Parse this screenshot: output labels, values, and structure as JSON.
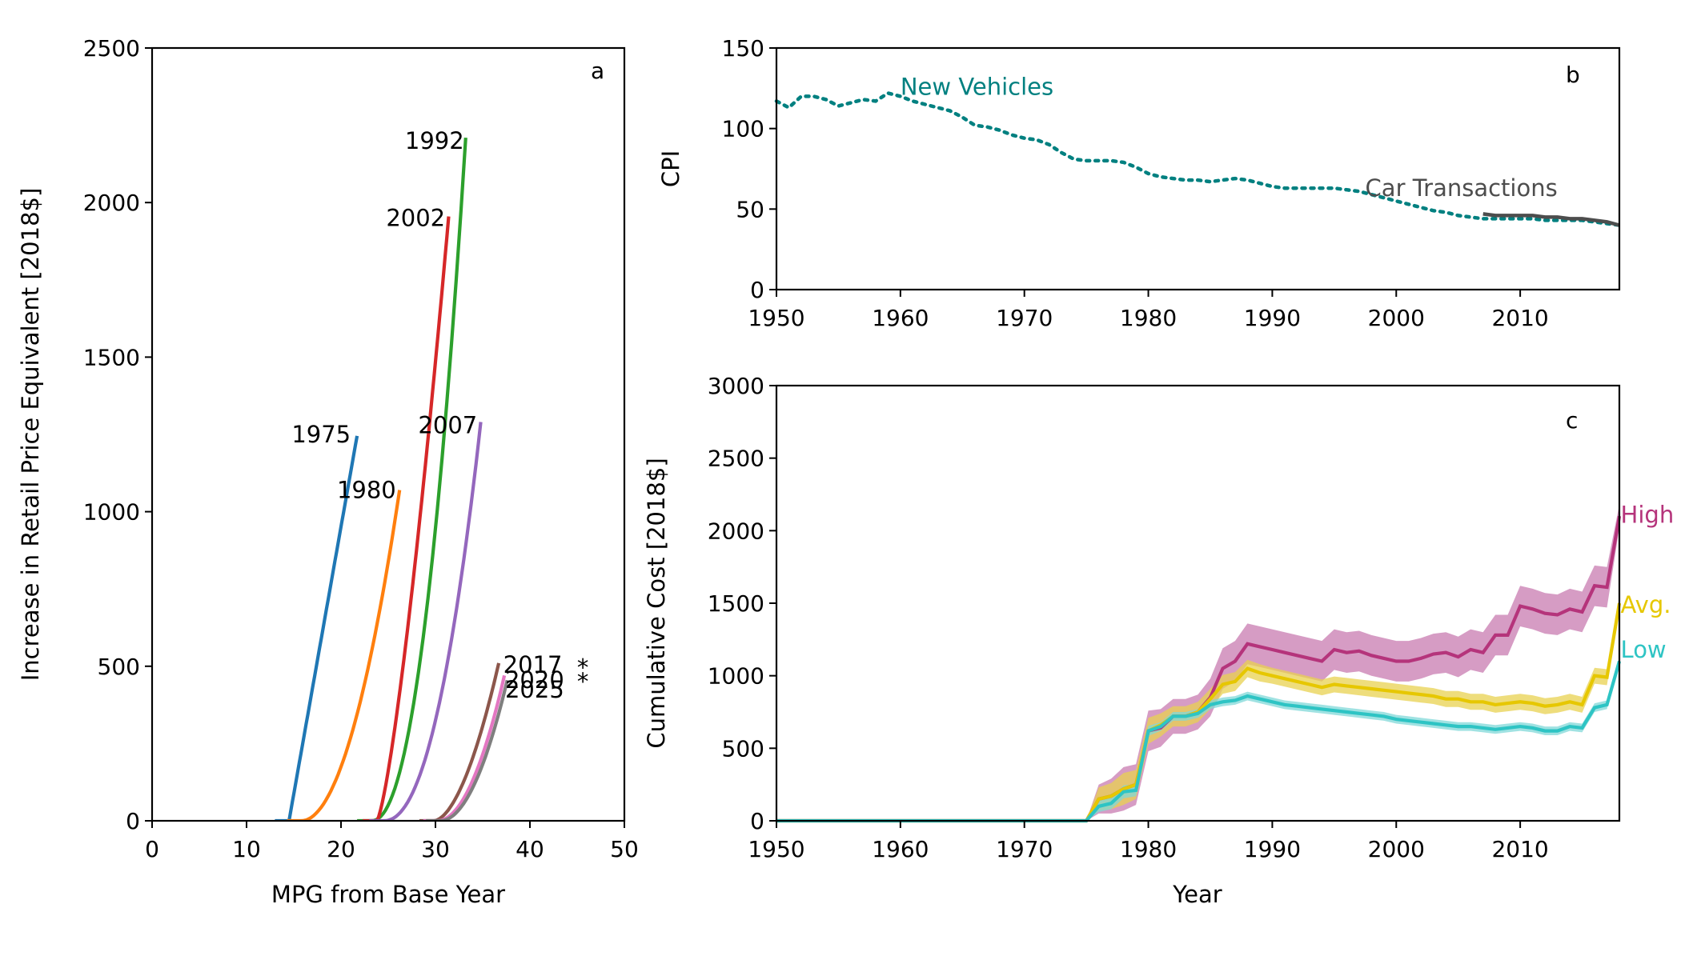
{
  "chart_data": [
    {
      "id": "a",
      "type": "line",
      "panel_label": "a",
      "xlabel": "MPG from Base Year",
      "ylabel": "Increase in Retail Price Equivalent [2018$]",
      "xlim": [
        0,
        50
      ],
      "ylim": [
        0,
        2500
      ],
      "xticks": [
        "0",
        "10",
        "20",
        "30",
        "40",
        "50"
      ],
      "yticks": [
        "0",
        "500",
        "1000",
        "1500",
        "2000",
        "2500"
      ],
      "grid": false,
      "series": [
        {
          "name": "1975",
          "color": "#1f77b4",
          "shape": "linear",
          "x_start": 14.5,
          "x_end": 21.7,
          "y_end": 1245,
          "power": 1.0
        },
        {
          "name": "1980",
          "color": "#ff7f0e",
          "shape": "curve",
          "x_start": 15.8,
          "x_end": 26.2,
          "y_end": 1070,
          "power": 2.0
        },
        {
          "name": "1992",
          "color": "#2ca02c",
          "shape": "curve",
          "x_start": 23.2,
          "x_end": 33.2,
          "y_end": 2210,
          "power": 2.2
        },
        {
          "name": "2002",
          "color": "#d62728",
          "shape": "curve",
          "x_start": 23.8,
          "x_end": 31.4,
          "y_end": 1955,
          "power": 1.35
        },
        {
          "name": "2007",
          "color": "#9467bd",
          "shape": "curve",
          "x_start": 24.5,
          "x_end": 34.8,
          "y_end": 1290,
          "power": 2.2
        },
        {
          "name": "2017",
          "color": "#8c564b",
          "shape": "curve",
          "x_start": 29.8,
          "x_end": 36.7,
          "y_end": 510,
          "power": 1.8
        },
        {
          "name": "2020",
          "color": "#e377c2",
          "shape": "curve",
          "x_start": 30.2,
          "x_end": 37.3,
          "y_end": 470,
          "power": 2.0
        },
        {
          "name": "2025",
          "color": "#7f7f7f",
          "shape": "curve",
          "x_start": 30.5,
          "x_end": 37.6,
          "y_end": 455,
          "power": 2.0
        }
      ],
      "annotations": [
        {
          "text": "1975",
          "x": 17.9,
          "y": 1250,
          "anchor": "middle"
        },
        {
          "text": "1980",
          "x": 22.7,
          "y": 1070,
          "anchor": "middle"
        },
        {
          "text": "1992",
          "x": 29.9,
          "y": 2200,
          "anchor": "middle"
        },
        {
          "text": "2002",
          "x": 27.9,
          "y": 1950,
          "anchor": "middle"
        },
        {
          "text": "2007",
          "x": 31.3,
          "y": 1280,
          "anchor": "middle"
        },
        {
          "text": "2017",
          "x": 40.3,
          "y": 505,
          "anchor": "middle"
        },
        {
          "text": "2020",
          "x": 40.5,
          "y": 455,
          "anchor": "middle"
        },
        {
          "text": "2025",
          "x": 40.5,
          "y": 425,
          "anchor": "middle"
        },
        {
          "text": "*",
          "x": 45.6,
          "y": 495,
          "anchor": "middle"
        },
        {
          "text": "*",
          "x": 45.6,
          "y": 450,
          "anchor": "middle"
        }
      ]
    },
    {
      "id": "b",
      "type": "line",
      "panel_label": "b",
      "xlabel": "",
      "ylabel": "CPI",
      "xlim": [
        1950,
        2018
      ],
      "ylim": [
        0,
        150
      ],
      "xticks": [
        "1950",
        "1960",
        "1970",
        "1980",
        "1990",
        "2000",
        "2010"
      ],
      "yticks": [
        "0",
        "50",
        "100",
        "150"
      ],
      "grid": false,
      "series": [
        {
          "name": "New Vehicles",
          "color": "#008080",
          "style": "dotted",
          "x": [
            1950,
            1951,
            1952,
            1953,
            1954,
            1955,
            1956,
            1957,
            1958,
            1959,
            1960,
            1961,
            1962,
            1963,
            1964,
            1965,
            1966,
            1967,
            1968,
            1969,
            1970,
            1971,
            1972,
            1973,
            1974,
            1975,
            1976,
            1977,
            1978,
            1979,
            1980,
            1981,
            1982,
            1983,
            1984,
            1985,
            1986,
            1987,
            1988,
            1989,
            1990,
            1991,
            1992,
            1993,
            1994,
            1995,
            1996,
            1997,
            1998,
            1999,
            2000,
            2001,
            2002,
            2003,
            2004,
            2005,
            2006,
            2007,
            2008,
            2009,
            2010,
            2011,
            2012,
            2013,
            2014,
            2015,
            2016,
            2017,
            2018
          ],
          "y": [
            117,
            113,
            120,
            120,
            118,
            114,
            116,
            118,
            117,
            122,
            120,
            117,
            115,
            113,
            111,
            107,
            102,
            101,
            99,
            96,
            94,
            93,
            90,
            85,
            81,
            80,
            80,
            80,
            79,
            76,
            72,
            70,
            69,
            68,
            68,
            67,
            68,
            69,
            68,
            66,
            64,
            63,
            63,
            63,
            63,
            63,
            62,
            61,
            59,
            57,
            55,
            53,
            51,
            49,
            48,
            46,
            45,
            44,
            44,
            44,
            44,
            44,
            43,
            43,
            43,
            43,
            42,
            41,
            40
          ]
        },
        {
          "name": "Car Transactions",
          "color": "#4d4d4d",
          "style": "solid",
          "x": [
            2007,
            2008,
            2009,
            2010,
            2011,
            2012,
            2013,
            2014,
            2015,
            2016,
            2017,
            2018
          ],
          "y": [
            47,
            46,
            46,
            46,
            46,
            45,
            45,
            44,
            44,
            43,
            42,
            40
          ]
        }
      ],
      "annotations": [
        {
          "text": "New Vehicles",
          "x": 1960,
          "y": 126,
          "color": "#008080"
        },
        {
          "text": "Car Transactions",
          "x": 1997.5,
          "y": 63,
          "color": "#4d4d4d"
        }
      ]
    },
    {
      "id": "c",
      "type": "area",
      "panel_label": "c",
      "xlabel": "Year",
      "ylabel": "Cumulative Cost [2018$]",
      "xlim": [
        1950,
        2018
      ],
      "ylim": [
        0,
        3000
      ],
      "xticks": [
        "1950",
        "1960",
        "1970",
        "1980",
        "1990",
        "2000",
        "2010"
      ],
      "yticks": [
        "0",
        "500",
        "1000",
        "1500",
        "2000",
        "2500",
        "3000"
      ],
      "grid": false,
      "x": [
        1975,
        1976,
        1977,
        1978,
        1979,
        1980,
        1981,
        1982,
        1983,
        1984,
        1985,
        1986,
        1987,
        1988,
        1989,
        1990,
        1991,
        1992,
        1993,
        1994,
        1995,
        1996,
        1997,
        1998,
        1999,
        2000,
        2001,
        2002,
        2003,
        2004,
        2005,
        2006,
        2007,
        2008,
        2009,
        2010,
        2011,
        2012,
        2013,
        2014,
        2015,
        2016,
        2017,
        2018
      ],
      "series": [
        {
          "name": "High",
          "color": "#b5347b",
          "band_color": "#c87bb0",
          "values": [
            0,
            150,
            170,
            220,
            250,
            620,
            640,
            720,
            720,
            750,
            850,
            1050,
            1100,
            1220,
            1200,
            1180,
            1160,
            1140,
            1120,
            1100,
            1180,
            1160,
            1170,
            1140,
            1120,
            1100,
            1100,
            1120,
            1150,
            1160,
            1130,
            1180,
            1160,
            1280,
            1280,
            1480,
            1460,
            1430,
            1420,
            1460,
            1440,
            1620,
            1610,
            2100
          ],
          "spread": [
            0,
            100,
            120,
            150,
            140,
            140,
            130,
            120,
            120,
            120,
            130,
            140,
            140,
            140,
            140,
            140,
            140,
            140,
            140,
            140,
            140,
            140,
            140,
            140,
            140,
            140,
            140,
            140,
            140,
            140,
            140,
            140,
            140,
            140,
            140,
            140,
            140,
            140,
            140,
            140,
            140,
            140,
            140,
            80
          ]
        },
        {
          "name": "Avg.",
          "color": "#e6c700",
          "band_color": "#e8d250",
          "values": [
            0,
            150,
            170,
            220,
            250,
            620,
            660,
            720,
            720,
            750,
            840,
            940,
            960,
            1050,
            1020,
            1000,
            980,
            960,
            940,
            920,
            940,
            930,
            920,
            910,
            900,
            890,
            880,
            870,
            860,
            840,
            840,
            820,
            820,
            800,
            810,
            820,
            810,
            790,
            800,
            820,
            800,
            1000,
            990,
            1500
          ],
          "spread": [
            0,
            80,
            90,
            110,
            100,
            90,
            80,
            70,
            70,
            70,
            70,
            65,
            65,
            60,
            60,
            55,
            55,
            55,
            55,
            55,
            55,
            55,
            55,
            55,
            55,
            55,
            55,
            55,
            55,
            55,
            55,
            55,
            55,
            55,
            55,
            55,
            55,
            55,
            55,
            55,
            55,
            55,
            55,
            40
          ]
        },
        {
          "name": "Low",
          "color": "#2ec4c4",
          "band_color": "#80d8d8",
          "values": [
            0,
            100,
            120,
            200,
            210,
            620,
            650,
            720,
            720,
            740,
            800,
            820,
            830,
            860,
            840,
            820,
            800,
            790,
            780,
            770,
            760,
            750,
            740,
            730,
            720,
            700,
            690,
            680,
            670,
            660,
            650,
            650,
            640,
            630,
            640,
            650,
            640,
            620,
            620,
            650,
            640,
            780,
            800,
            1100
          ],
          "spread": [
            0,
            40,
            40,
            45,
            40,
            35,
            30,
            30,
            30,
            30,
            30,
            30,
            30,
            30,
            30,
            30,
            30,
            30,
            30,
            30,
            30,
            30,
            30,
            30,
            30,
            30,
            30,
            30,
            30,
            30,
            30,
            30,
            30,
            30,
            30,
            30,
            30,
            30,
            30,
            30,
            30,
            30,
            30,
            20
          ]
        }
      ],
      "annotations": [
        {
          "text": "High",
          "x": 2018.1,
          "y": 2110,
          "color": "#b5347b"
        },
        {
          "text": "Avg.",
          "x": 2018.1,
          "y": 1490,
          "color": "#e6c700"
        },
        {
          "text": "Low",
          "x": 2018.1,
          "y": 1180,
          "color": "#2ec4c4"
        }
      ]
    }
  ]
}
